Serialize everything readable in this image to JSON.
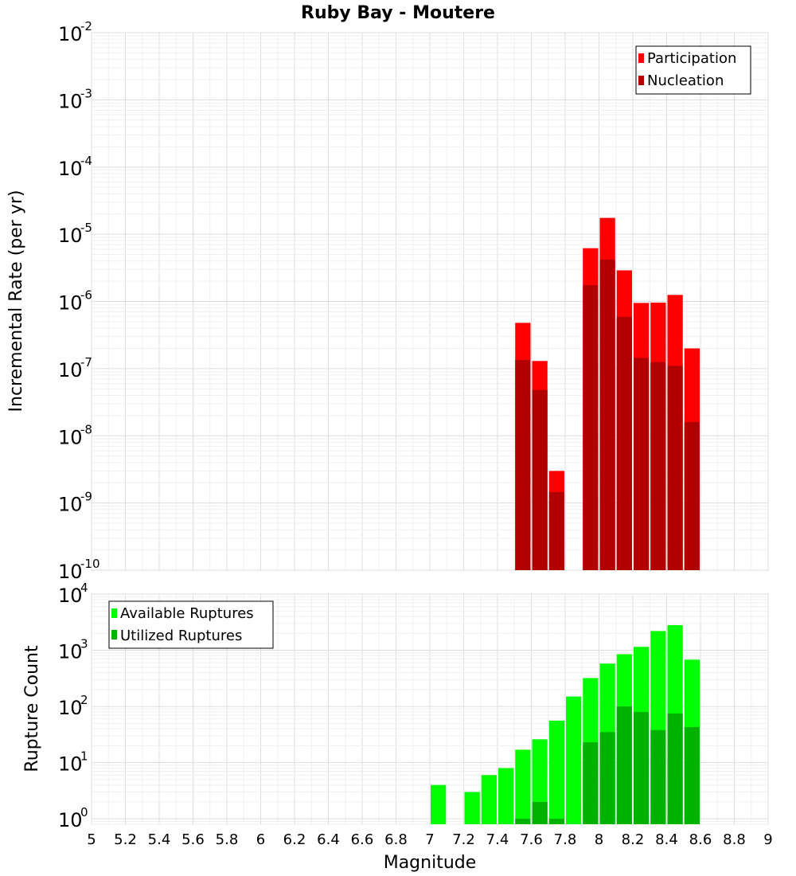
{
  "chart_data": [
    {
      "panel": "top",
      "type": "bar",
      "title": "Ruby Bay - Moutere",
      "ylabel": "Incremental Rate (per yr)",
      "xlabel": "",
      "yscale": "log",
      "ylim": [
        1e-10,
        0.01
      ],
      "xlim": [
        5,
        9
      ],
      "bar_width": 0.1,
      "y_ticks": [
        {
          "base": "10",
          "exp": "-10",
          "value": 1e-10
        },
        {
          "base": "10",
          "exp": "-9",
          "value": 1e-09
        },
        {
          "base": "10",
          "exp": "-8",
          "value": 1e-08
        },
        {
          "base": "10",
          "exp": "-7",
          "value": 1e-07
        },
        {
          "base": "10",
          "exp": "-6",
          "value": 1e-06
        },
        {
          "base": "10",
          "exp": "-5",
          "value": 1e-05
        },
        {
          "base": "10",
          "exp": "-4",
          "value": 0.0001
        },
        {
          "base": "10",
          "exp": "-3",
          "value": 0.001
        },
        {
          "base": "10",
          "exp": "-2",
          "value": 0.01
        }
      ],
      "legend": {
        "placement": "top-right"
      },
      "grid": true,
      "series": [
        {
          "name": "Participation",
          "color": "#ff0000",
          "x": [
            7.55,
            7.65,
            7.75,
            7.95,
            8.05,
            8.15,
            8.25,
            8.35,
            8.45,
            8.55
          ],
          "values": [
            4.8e-07,
            1.3e-07,
            3e-09,
            6.2e-06,
            1.75e-05,
            2.9e-06,
            9.5e-07,
            9.6e-07,
            1.25e-06,
            2e-07
          ]
        },
        {
          "name": "Nucleation",
          "color": "#b20000",
          "x": [
            7.55,
            7.65,
            7.75,
            7.95,
            8.05,
            8.15,
            8.25,
            8.35,
            8.45,
            8.55
          ],
          "values": [
            1.35e-07,
            4.8e-08,
            1.45e-09,
            1.75e-06,
            4.2e-06,
            5.9e-07,
            1.45e-07,
            1.25e-07,
            1.1e-07,
            1.6e-08
          ]
        }
      ]
    },
    {
      "panel": "bottom",
      "type": "bar",
      "title": "",
      "ylabel": "Rupture Count",
      "xlabel": "Magnitude",
      "yscale": "log",
      "ylim": [
        0.8,
        10000
      ],
      "xlim": [
        5,
        9
      ],
      "bar_width": 0.1,
      "y_ticks": [
        {
          "base": "10",
          "exp": "0",
          "value": 1
        },
        {
          "base": "10",
          "exp": "1",
          "value": 10
        },
        {
          "base": "10",
          "exp": "2",
          "value": 100
        },
        {
          "base": "10",
          "exp": "3",
          "value": 1000
        },
        {
          "base": "10",
          "exp": "4",
          "value": 10000
        }
      ],
      "x_ticks": [
        "5",
        "5.2",
        "5.4",
        "5.6",
        "5.8",
        "6",
        "6.2",
        "6.4",
        "6.6",
        "6.8",
        "7",
        "7.2",
        "7.4",
        "7.6",
        "7.8",
        "8",
        "8.2",
        "8.4",
        "8.6",
        "8.8",
        "9"
      ],
      "legend": {
        "placement": "top-left"
      },
      "grid": true,
      "series": [
        {
          "name": "Available Ruptures",
          "color": "#00ff00",
          "x": [
            7.05,
            7.25,
            7.35,
            7.45,
            7.55,
            7.65,
            7.75,
            7.85,
            7.95,
            8.05,
            8.15,
            8.25,
            8.35,
            8.45,
            8.55
          ],
          "values": [
            4,
            3,
            6,
            8,
            17,
            26,
            56,
            150,
            320,
            580,
            850,
            1150,
            2200,
            2800,
            680
          ]
        },
        {
          "name": "Utilized Ruptures",
          "color": "#00b200",
          "x": [
            7.55,
            7.65,
            7.75,
            7.95,
            8.05,
            8.15,
            8.25,
            8.35,
            8.45,
            8.55
          ],
          "values": [
            1,
            2,
            1,
            23,
            35,
            100,
            80,
            38,
            75,
            43
          ]
        }
      ]
    }
  ]
}
